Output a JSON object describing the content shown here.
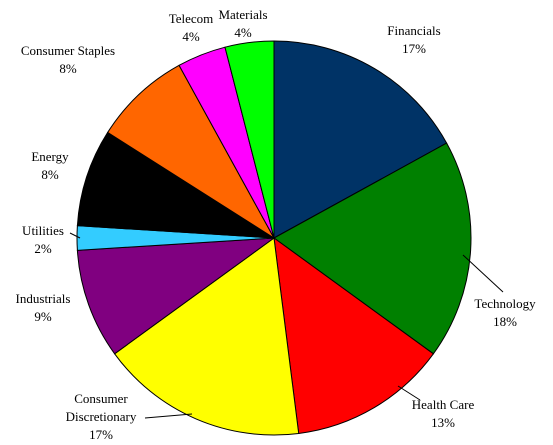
{
  "chart_data": {
    "type": "pie",
    "categories": [
      "Financials",
      "Technology",
      "Health Care",
      "Consumer Discretionary",
      "Industrials",
      "Utilities",
      "Energy",
      "Consumer Staples",
      "Telecom",
      "Materials"
    ],
    "values": [
      17,
      18,
      13,
      17,
      9,
      2,
      8,
      8,
      4,
      4
    ],
    "value_labels": [
      "17%",
      "18%",
      "13%",
      "17%",
      "9%",
      "2%",
      "8%",
      "8%",
      "4%",
      "4%"
    ],
    "colors": [
      "#003366",
      "#008000",
      "#ff0000",
      "#ffff00",
      "#800080",
      "#33ccff",
      "#000000",
      "#ff6600",
      "#ff00ff",
      "#00ff00"
    ]
  }
}
